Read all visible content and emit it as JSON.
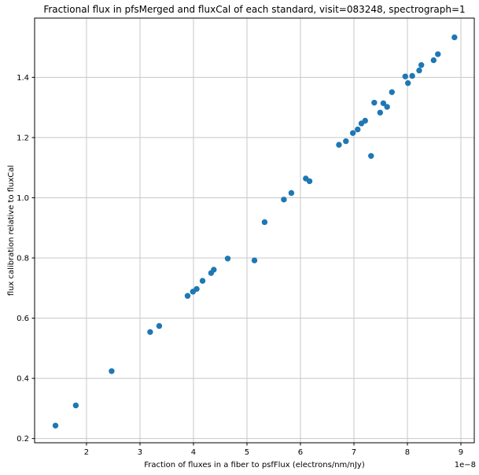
{
  "chart_data": {
    "type": "scatter",
    "title": "Fractional flux in pfsMerged and fluxCal of each standard, visit=083248, spectrograph=1",
    "xlabel": "Fraction of fluxes in a fiber to psfFlux (electrons/nm/nJy)",
    "ylabel": "flux calibration relative to fluxCal",
    "x_offset_label": "1e−8",
    "xlim": [
      1.03,
      9.25
    ],
    "ylim": [
      0.186,
      1.597
    ],
    "grid": true,
    "legend_position": "none",
    "marker_color": "#1f77b4",
    "grid_color": "#c8c8c8",
    "spine_color": "#000000",
    "x_ticks": [
      {
        "value": 2,
        "label": "2"
      },
      {
        "value": 3,
        "label": "3"
      },
      {
        "value": 4,
        "label": "4"
      },
      {
        "value": 5,
        "label": "5"
      },
      {
        "value": 6,
        "label": "6"
      },
      {
        "value": 7,
        "label": "7"
      },
      {
        "value": 8,
        "label": "8"
      },
      {
        "value": 9,
        "label": "9"
      }
    ],
    "y_ticks": [
      {
        "value": 0.2,
        "label": "0.2"
      },
      {
        "value": 0.4,
        "label": "0.4"
      },
      {
        "value": 0.6,
        "label": "0.6"
      },
      {
        "value": 0.8,
        "label": "0.8"
      },
      {
        "value": 1.0,
        "label": "1.0"
      },
      {
        "value": 1.2,
        "label": "1.2"
      },
      {
        "value": 1.4,
        "label": "1.4"
      }
    ],
    "points": [
      [
        1.42,
        0.243
      ],
      [
        1.8,
        0.31
      ],
      [
        2.47,
        0.424
      ],
      [
        3.19,
        0.554
      ],
      [
        3.36,
        0.574
      ],
      [
        3.89,
        0.674
      ],
      [
        3.99,
        0.688
      ],
      [
        4.06,
        0.697
      ],
      [
        4.17,
        0.724
      ],
      [
        4.33,
        0.75
      ],
      [
        4.38,
        0.761
      ],
      [
        4.64,
        0.798
      ],
      [
        5.14,
        0.792
      ],
      [
        5.33,
        0.919
      ],
      [
        5.69,
        0.994
      ],
      [
        5.83,
        1.016
      ],
      [
        6.1,
        1.064
      ],
      [
        6.17,
        1.055
      ],
      [
        6.72,
        1.176
      ],
      [
        6.85,
        1.188
      ],
      [
        6.98,
        1.215
      ],
      [
        7.07,
        1.227
      ],
      [
        7.14,
        1.247
      ],
      [
        7.21,
        1.256
      ],
      [
        7.32,
        1.139
      ],
      [
        7.38,
        1.316
      ],
      [
        7.49,
        1.283
      ],
      [
        7.55,
        1.314
      ],
      [
        7.62,
        1.302
      ],
      [
        7.71,
        1.351
      ],
      [
        7.96,
        1.403
      ],
      [
        8.01,
        1.381
      ],
      [
        8.09,
        1.405
      ],
      [
        8.22,
        1.423
      ],
      [
        8.26,
        1.441
      ],
      [
        8.49,
        1.457
      ],
      [
        8.57,
        1.477
      ],
      [
        8.88,
        1.533
      ]
    ]
  }
}
